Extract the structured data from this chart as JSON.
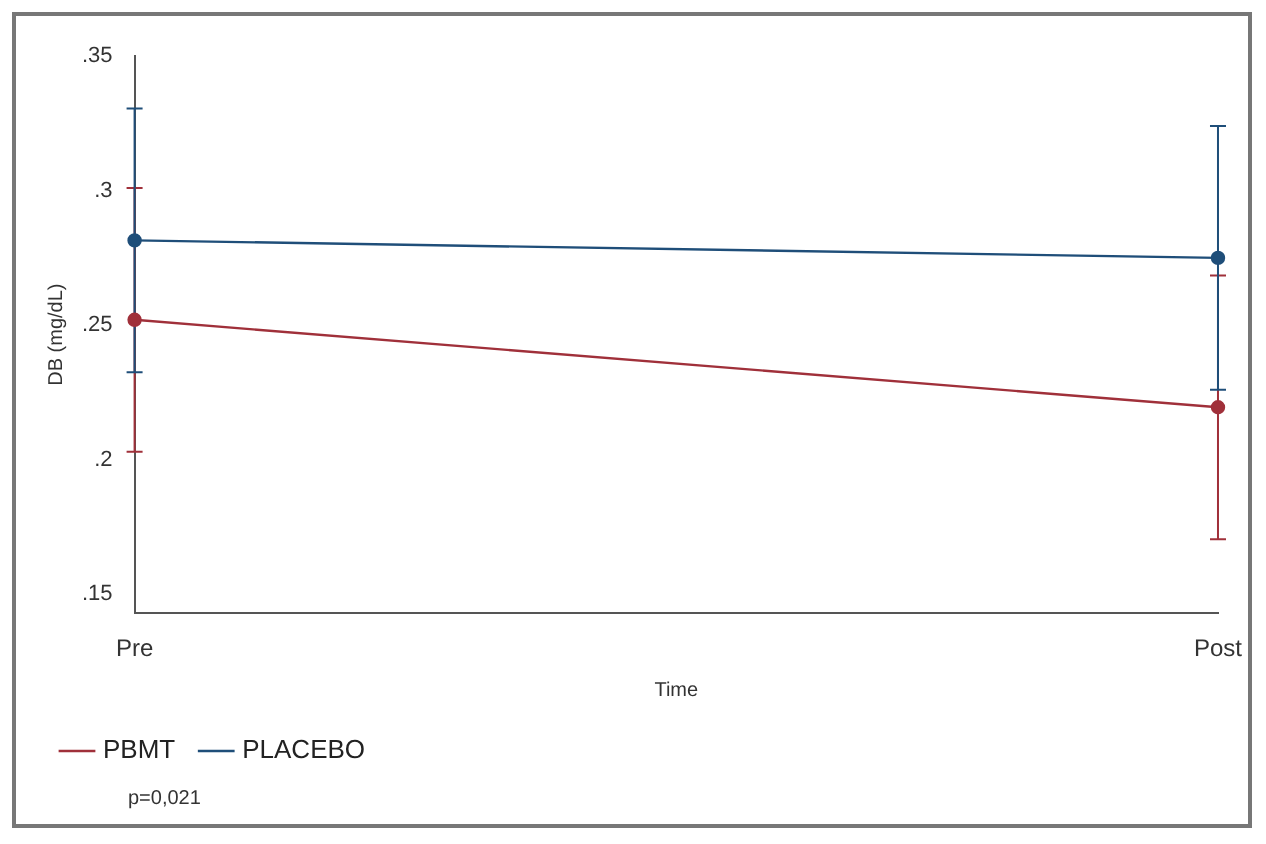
{
  "chart_data": {
    "type": "line",
    "xlabel": "Time",
    "ylabel": "DB (mg/dL)",
    "categories": [
      "Pre",
      "Post"
    ],
    "series": [
      {
        "name": "PBMT",
        "color": "#a0303a",
        "values": [
          0.252,
          0.2195
        ],
        "errors": [
          0.049,
          0.049
        ]
      },
      {
        "name": "PLACEBO",
        "color": "#1f4e79",
        "values": [
          0.2815,
          0.275
        ],
        "errors": [
          0.049,
          0.049
        ]
      }
    ],
    "ylim": [
      0.143,
      0.35
    ],
    "yticks": [
      {
        "value": 0.15,
        "label": ".15"
      },
      {
        "value": 0.2,
        "label": ".2"
      },
      {
        "value": 0.25,
        "label": ".25"
      },
      {
        "value": 0.3,
        "label": ".3"
      },
      {
        "value": 0.35,
        "label": ".35"
      }
    ],
    "grid": false,
    "legend": "bottom",
    "marker": "circle",
    "annotations": [
      "p=0,021"
    ]
  }
}
